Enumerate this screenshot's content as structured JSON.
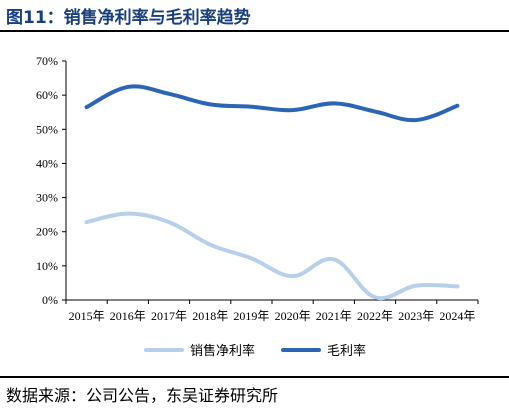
{
  "header": {
    "title": "图11：销售净利率与毛利率趋势"
  },
  "footer": {
    "source": "数据来源：公司公告，东吴证券研究所"
  },
  "chart_data": {
    "type": "line",
    "categories": [
      "2015年",
      "2016年",
      "2017年",
      "2018年",
      "2019年",
      "2020年",
      "2021年",
      "2022年",
      "2023年",
      "2024年"
    ],
    "ylim": [
      0,
      70
    ],
    "yticks": [
      0,
      10,
      20,
      30,
      40,
      50,
      60,
      70
    ],
    "ytick_labels": [
      "0%",
      "10%",
      "20%",
      "30%",
      "40%",
      "50%",
      "60%",
      "70%"
    ],
    "series": [
      {
        "name": "销售净利率",
        "color": "#b7cfe9",
        "values": [
          22.8,
          25.3,
          22.8,
          16.2,
          12.2,
          7.0,
          11.9,
          0.8,
          4.2,
          4.0
        ]
      },
      {
        "name": "毛利率",
        "color": "#2c65b4",
        "values": [
          56.5,
          62.4,
          60.4,
          57.3,
          56.6,
          55.6,
          57.6,
          55.2,
          52.7,
          56.9
        ]
      }
    ],
    "legend_position": "bottom",
    "grid": false
  }
}
